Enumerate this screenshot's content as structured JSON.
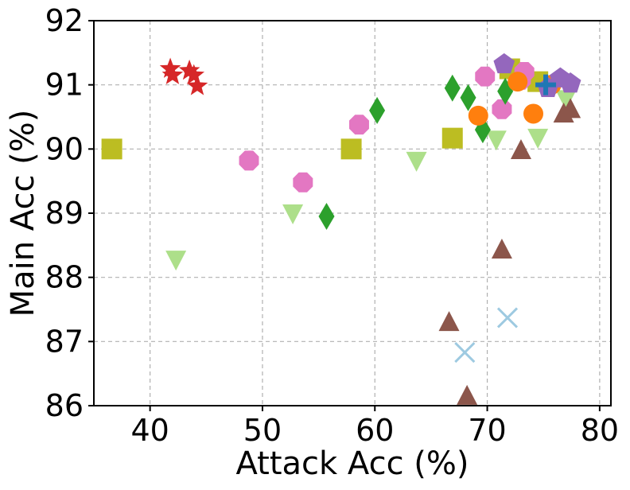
{
  "chart_data": {
    "type": "scatter",
    "title": "",
    "xlabel": "Attack Acc (%)",
    "ylabel": "Main Acc (%)",
    "xlim": [
      35,
      81
    ],
    "ylim": [
      86,
      92
    ],
    "xticks": [
      40,
      50,
      60,
      70,
      80
    ],
    "yticks": [
      86,
      87,
      88,
      89,
      90,
      91,
      92
    ],
    "grid": true,
    "series": [
      {
        "name": "red-star",
        "marker": "star",
        "color": "#d62728",
        "points": [
          [
            41.8,
            91.25
          ],
          [
            42.0,
            91.15
          ],
          [
            43.5,
            91.22
          ],
          [
            43.9,
            91.15
          ],
          [
            44.2,
            90.98
          ]
        ]
      },
      {
        "name": "olive-square",
        "marker": "square",
        "color": "#bcbd22",
        "points": [
          [
            36.6,
            90.0
          ],
          [
            57.9,
            90.0
          ],
          [
            66.9,
            90.17
          ],
          [
            72.0,
            91.25
          ],
          [
            74.5,
            91.05
          ]
        ]
      },
      {
        "name": "light-green-triangle-down",
        "marker": "triangle-down",
        "color": "#addf8a",
        "points": [
          [
            42.3,
            88.28
          ],
          [
            52.7,
            89.0
          ],
          [
            63.7,
            89.82
          ],
          [
            70.8,
            90.15
          ],
          [
            74.5,
            90.18
          ],
          [
            77.0,
            90.78
          ]
        ]
      },
      {
        "name": "pink-octagon",
        "marker": "octagon",
        "color": "#e377c2",
        "points": [
          [
            48.8,
            89.82
          ],
          [
            53.6,
            89.48
          ],
          [
            58.6,
            90.38
          ],
          [
            69.8,
            91.13
          ],
          [
            71.3,
            90.62
          ],
          [
            73.0,
            91.08
          ],
          [
            73.3,
            91.2
          ]
        ]
      },
      {
        "name": "green-diamond",
        "marker": "diamond",
        "color": "#2ca02c",
        "points": [
          [
            55.7,
            88.95
          ],
          [
            60.2,
            90.6
          ],
          [
            66.9,
            90.95
          ],
          [
            68.3,
            90.8
          ],
          [
            69.6,
            90.3
          ],
          [
            71.6,
            90.9
          ]
        ]
      },
      {
        "name": "orange-circle",
        "marker": "circle",
        "color": "#ff7f0e",
        "points": [
          [
            69.2,
            90.52
          ],
          [
            72.7,
            91.05
          ],
          [
            74.1,
            90.55
          ],
          [
            75.7,
            91.0
          ]
        ]
      },
      {
        "name": "brown-triangle-up",
        "marker": "triangle-up",
        "color": "#8c564b",
        "points": [
          [
            66.6,
            87.3
          ],
          [
            68.2,
            86.15
          ],
          [
            71.3,
            88.43
          ],
          [
            73.0,
            89.98
          ],
          [
            76.8,
            90.55
          ],
          [
            77.4,
            90.62
          ]
        ]
      },
      {
        "name": "light-blue-x",
        "marker": "x",
        "color": "#9ecae1",
        "points": [
          [
            68.0,
            86.83
          ],
          [
            71.8,
            87.37
          ]
        ]
      },
      {
        "name": "purple-pentagon",
        "marker": "pentagon",
        "color": "#9467bd",
        "points": [
          [
            71.5,
            91.32
          ],
          [
            75.4,
            90.95
          ],
          [
            76.5,
            91.1
          ],
          [
            77.4,
            91.02
          ]
        ]
      },
      {
        "name": "blue-plus",
        "marker": "plus",
        "color": "#1f77b4",
        "points": [
          [
            75.2,
            91.0
          ]
        ]
      }
    ]
  }
}
